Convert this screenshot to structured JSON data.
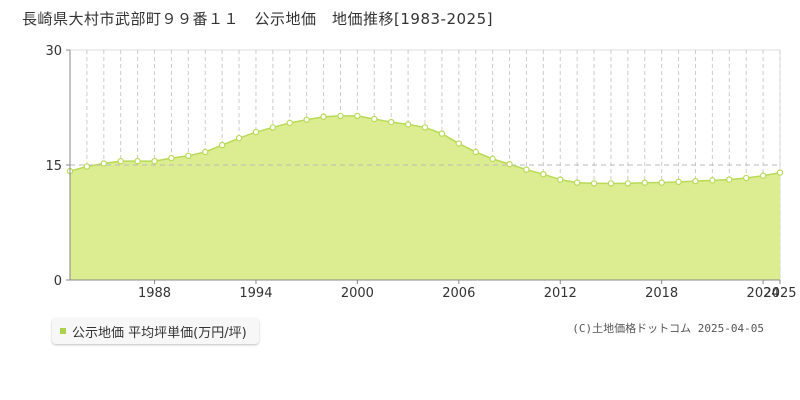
{
  "page": {
    "title": "長崎県大村市武部町９９番１１　公示地価　地価推移[1983-2025]",
    "copyright": "(C)土地価格ドットコム 2025-04-05"
  },
  "legend": {
    "label": "公示地価 平均坪単価(万円/坪)"
  },
  "colors": {
    "area_fill": "#dcec91",
    "line": "#b8da56",
    "marker_fill": "#ffffff",
    "grid": "#cccccc",
    "axis": "#888888"
  },
  "chart_data": {
    "type": "area",
    "title": "",
    "xlabel": "",
    "ylabel": "",
    "ylim": [
      0,
      30
    ],
    "xlim": [
      1983,
      2025
    ],
    "yticks": [
      0,
      15,
      30
    ],
    "xticks": [
      1988,
      1994,
      2000,
      2006,
      2012,
      2018,
      2024,
      2025
    ],
    "grid": true,
    "legend_position": "bottom-left",
    "series": [
      {
        "name": "公示地価 平均坪単価(万円/坪)",
        "x": [
          1983,
          1984,
          1985,
          1986,
          1987,
          1988,
          1989,
          1990,
          1991,
          1992,
          1993,
          1994,
          1995,
          1996,
          1997,
          1998,
          1999,
          2000,
          2001,
          2002,
          2003,
          2004,
          2005,
          2006,
          2007,
          2008,
          2009,
          2010,
          2011,
          2012,
          2013,
          2014,
          2015,
          2016,
          2017,
          2018,
          2019,
          2020,
          2021,
          2022,
          2023,
          2024,
          2025
        ],
        "values": [
          14.2,
          14.8,
          15.2,
          15.5,
          15.5,
          15.5,
          15.9,
          16.2,
          16.7,
          17.6,
          18.5,
          19.3,
          19.9,
          20.5,
          20.9,
          21.3,
          21.4,
          21.4,
          21.0,
          20.6,
          20.3,
          19.9,
          19.1,
          17.8,
          16.7,
          15.8,
          15.1,
          14.4,
          13.8,
          13.1,
          12.7,
          12.6,
          12.6,
          12.6,
          12.7,
          12.7,
          12.8,
          12.9,
          13.0,
          13.1,
          13.3,
          13.6,
          14.0
        ]
      }
    ]
  }
}
